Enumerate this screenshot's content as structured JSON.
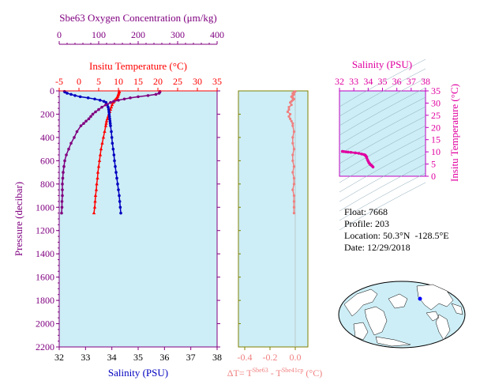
{
  "chart_data": [
    {
      "type": "line",
      "panel": "profile",
      "top_axis_1": {
        "label": "Sbe63 Oxygen Concentration (μm/kg)",
        "ticks": [
          0,
          100,
          200,
          300,
          400
        ],
        "range": [
          0,
          400
        ],
        "color": "#800080"
      },
      "top_axis_2": {
        "label": "Insitu Temperature (°C)",
        "ticks": [
          -5,
          0,
          5,
          10,
          15,
          20,
          25,
          30,
          35
        ],
        "range": [
          -5,
          35
        ],
        "color": "#ff0000"
      },
      "bottom_axis": {
        "label": "Salinity (PSU)",
        "ticks": [
          32,
          33,
          34,
          35,
          36,
          37,
          38
        ],
        "range": [
          32,
          38
        ],
        "color": "#0000c0"
      },
      "left_axis": {
        "label": "Pressure (decibar)",
        "ticks": [
          0,
          200,
          400,
          600,
          800,
          1000,
          1200,
          1400,
          1600,
          1800,
          2000,
          2200
        ],
        "range": [
          0,
          2200
        ],
        "inverted": true
      },
      "series": [
        {
          "color": "#ff0000",
          "marker": "triangle",
          "scale": "temperature",
          "pressure": [
            5,
            10,
            20,
            30,
            40,
            50,
            60,
            70,
            80,
            90,
            100,
            120,
            140,
            160,
            180,
            200,
            220,
            240,
            260,
            280,
            300,
            350,
            400,
            450,
            500,
            550,
            600,
            650,
            700,
            750,
            800,
            850,
            900,
            950,
            1000,
            1050
          ],
          "values": [
            10.2,
            10.2,
            10.1,
            10.0,
            9.9,
            9.8,
            9.6,
            9.4,
            9.1,
            8.9,
            8.7,
            8.4,
            8.2,
            8.0,
            7.8,
            7.6,
            7.4,
            7.2,
            7.0,
            6.9,
            6.8,
            6.5,
            6.2,
            5.9,
            5.6,
            5.4,
            5.2,
            5.0,
            4.8,
            4.7,
            4.5,
            4.4,
            4.2,
            4.1,
            4.0,
            3.8
          ]
        },
        {
          "color": "#0000c0",
          "marker": "dot",
          "scale": "salinity",
          "pressure": [
            5,
            10,
            20,
            30,
            40,
            50,
            60,
            70,
            80,
            90,
            100,
            120,
            140,
            160,
            180,
            200,
            220,
            240,
            260,
            280,
            300,
            350,
            400,
            450,
            500,
            550,
            600,
            650,
            700,
            750,
            800,
            850,
            900,
            950,
            1000,
            1050
          ],
          "values": [
            32.2,
            32.22,
            32.3,
            32.45,
            32.6,
            32.8,
            33.1,
            33.35,
            33.55,
            33.7,
            33.78,
            33.83,
            33.86,
            33.88,
            33.89,
            33.9,
            33.91,
            33.92,
            33.93,
            33.94,
            33.95,
            33.98,
            34.0,
            34.02,
            34.05,
            34.08,
            34.1,
            34.13,
            34.16,
            34.19,
            34.22,
            34.25,
            34.28,
            34.3,
            34.32,
            34.34
          ]
        },
        {
          "color": "#800080",
          "marker": "dot",
          "scale": "oxygen",
          "pressure": [
            5,
            10,
            20,
            30,
            40,
            50,
            60,
            70,
            80,
            90,
            100,
            120,
            140,
            160,
            180,
            200,
            220,
            240,
            260,
            280,
            300,
            350,
            400,
            450,
            500,
            550,
            600,
            650,
            700,
            750,
            800,
            850,
            900,
            950,
            1000,
            1050
          ],
          "values": [
            255,
            255,
            253,
            245,
            225,
            200,
            180,
            165,
            150,
            138,
            130,
            118,
            108,
            100,
            92,
            85,
            80,
            75,
            68,
            62,
            55,
            45,
            38,
            30,
            24,
            18,
            14,
            12,
            10,
            9,
            8,
            8,
            8,
            7,
            7,
            6
          ]
        }
      ]
    },
    {
      "type": "line",
      "panel": "delta_t",
      "xlabel": "ΔT= TSbe63 - TSbe41cp (°C)",
      "xlabel_parts": {
        "prefix": "ΔT= T",
        "sup1": "Sbe63",
        "mid": " - T",
        "sup2": "Sbe41cp",
        "suffix": " (°C)"
      },
      "x_ticks": [
        "-0.4",
        "-0.2",
        "0.0"
      ],
      "xlim": [
        -0.45,
        0.1
      ],
      "ylim": [
        0,
        2200
      ],
      "color": "#f08080",
      "pressure": [
        5,
        10,
        20,
        30,
        40,
        50,
        60,
        70,
        80,
        90,
        100,
        120,
        140,
        160,
        180,
        200,
        220,
        240,
        260,
        280,
        300,
        350,
        400,
        450,
        500,
        550,
        600,
        650,
        700,
        750,
        800,
        850,
        900,
        950,
        1000,
        1050
      ],
      "values": [
        0.0,
        -0.01,
        -0.02,
        -0.01,
        -0.02,
        -0.03,
        -0.02,
        -0.01,
        -0.02,
        -0.03,
        -0.04,
        -0.03,
        -0.05,
        -0.05,
        -0.06,
        -0.04,
        -0.05,
        -0.04,
        -0.03,
        -0.02,
        -0.02,
        -0.01,
        -0.02,
        -0.02,
        -0.01,
        -0.02,
        -0.02,
        -0.01,
        -0.02,
        -0.01,
        -0.01,
        -0.02,
        -0.01,
        -0.01,
        -0.01,
        -0.01
      ]
    },
    {
      "type": "scatter",
      "panel": "ts_diagram",
      "title": "Salinity (PSU)",
      "x_ticks": [
        32,
        33,
        34,
        35,
        36,
        37,
        38
      ],
      "xlim": [
        32,
        38
      ],
      "ylabel": "Insitu Temperature (°C)",
      "y_ticks": [
        0,
        5,
        10,
        15,
        20,
        25,
        30,
        35
      ],
      "ylim": [
        0,
        35
      ],
      "color": "#e000a0",
      "salinity": [
        32.2,
        32.3,
        32.45,
        32.6,
        32.8,
        33.1,
        33.35,
        33.55,
        33.7,
        33.78,
        33.83,
        33.88,
        33.9,
        33.95,
        34.0,
        34.05,
        34.1,
        34.16,
        34.22,
        34.28,
        34.34
      ],
      "temperature": [
        10.2,
        10.1,
        10.0,
        9.9,
        9.8,
        9.6,
        9.4,
        9.1,
        8.9,
        8.7,
        8.4,
        8.0,
        7.6,
        6.8,
        6.2,
        5.6,
        5.2,
        4.8,
        4.5,
        4.2,
        3.8
      ]
    }
  ],
  "info": {
    "float_label": "Float:",
    "float_value": "7668",
    "profile_label": "Profile:",
    "profile_value": "203",
    "location_label": "Location:",
    "location_value": "50.3°N  -128.5°E",
    "date_label": "Date:",
    "date_value": "12/29/2018"
  },
  "colors": {
    "plot_bg": "#cdeef6",
    "axis_purple": "#800080",
    "temp_red": "#ff0000",
    "sal_blue": "#0000c0",
    "dt_pink": "#f08080",
    "ts_magenta": "#e000a0"
  }
}
